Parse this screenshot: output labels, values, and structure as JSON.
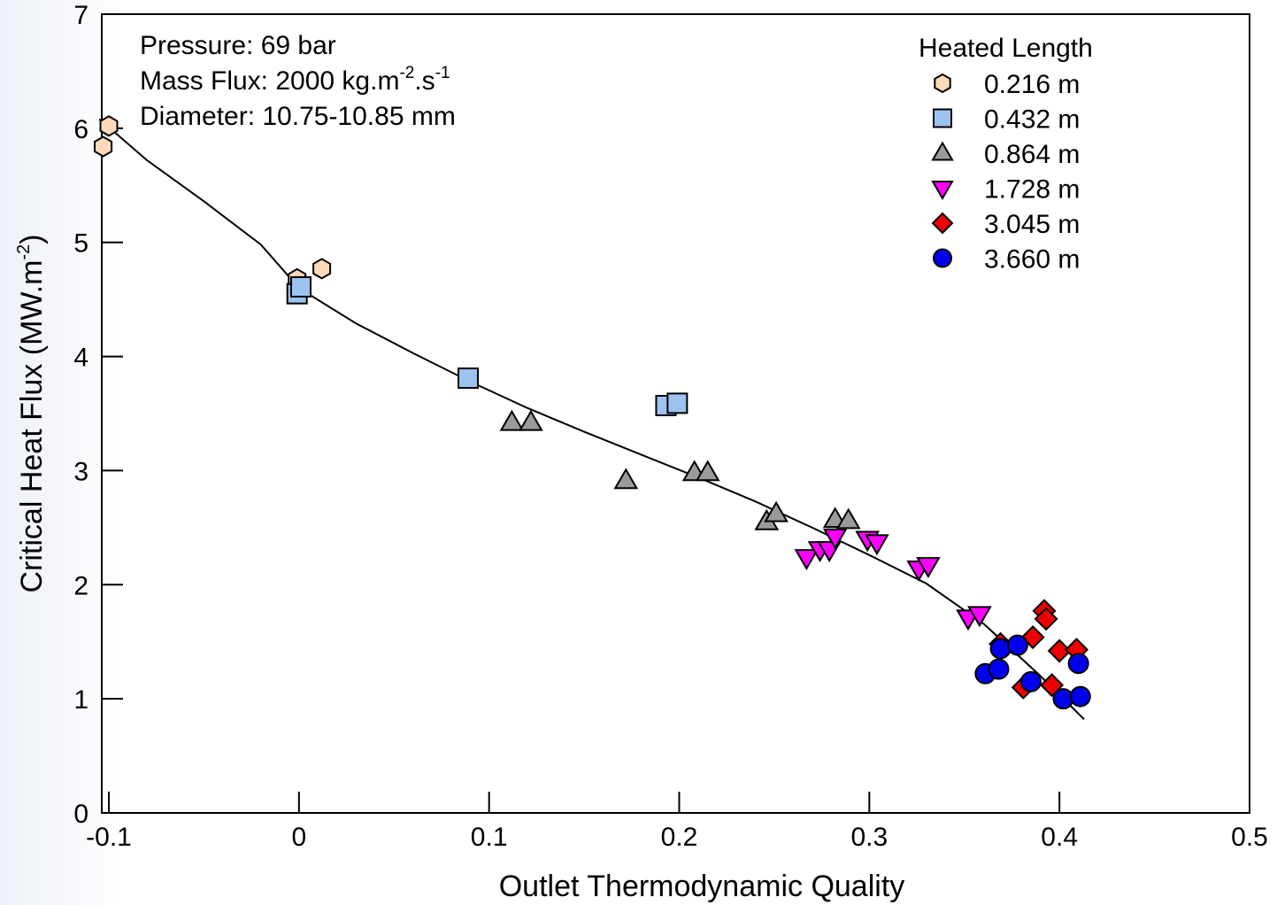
{
  "chart_data": {
    "type": "scatter",
    "xlabel": "Outlet Thermodynamic Quality",
    "ylabel": "Critical Heat Flux (MW.m",
    "ylabel_sup": "-2",
    "ylabel_end": ")",
    "xlim": [
      -0.1,
      0.5
    ],
    "ylim": [
      0,
      7
    ],
    "x_ticks": [
      -0.1,
      0,
      0.1,
      0.2,
      0.3,
      0.4,
      0.5
    ],
    "x_tick_labels": [
      "-0.1",
      "0",
      "0.1",
      "0.2",
      "0.3",
      "0.4",
      "0.5"
    ],
    "y_ticks": [
      0,
      1,
      2,
      3,
      4,
      5,
      6,
      7
    ],
    "y_tick_labels": [
      "0",
      "1",
      "2",
      "3",
      "4",
      "5",
      "6",
      "7"
    ],
    "grid": false,
    "annotations": {
      "pressure": "Pressure: 69 bar",
      "mass_flux_prefix": "Mass Flux: 2000 kg.m",
      "mass_flux_sup1": "-2",
      "mass_flux_mid": ".s",
      "mass_flux_sup2": "-1",
      "diameter": "Diameter: 10.75-10.85 mm"
    },
    "legend": {
      "title": "Heated Length",
      "position": "top-right"
    },
    "series": [
      {
        "name": "0.216 m",
        "marker": "hexagon",
        "color": "#fcd9b8",
        "x": [
          -0.103,
          -0.1,
          -0.001,
          0.012
        ],
        "y": [
          5.84,
          6.02,
          4.68,
          4.77
        ]
      },
      {
        "name": "0.432 m",
        "marker": "square",
        "color": "#9dc3f0",
        "x": [
          -0.001,
          0.001,
          0.089,
          0.193,
          0.199
        ],
        "y": [
          4.55,
          4.61,
          3.81,
          3.57,
          3.59
        ]
      },
      {
        "name": "0.864 m",
        "marker": "triangle-up",
        "color": "#9a9a9a",
        "x": [
          0.112,
          0.122,
          0.172,
          0.208,
          0.215,
          0.246,
          0.251,
          0.282,
          0.289
        ],
        "y": [
          3.42,
          3.42,
          2.91,
          2.98,
          2.98,
          2.55,
          2.62,
          2.57,
          2.56
        ]
      },
      {
        "name": "1.728 m",
        "marker": "triangle-down",
        "color": "#ff00ff",
        "x": [
          0.267,
          0.274,
          0.279,
          0.282,
          0.299,
          0.304,
          0.326,
          0.331,
          0.352,
          0.358
        ],
        "y": [
          2.24,
          2.31,
          2.31,
          2.42,
          2.4,
          2.37,
          2.14,
          2.17,
          1.71,
          1.74
        ]
      },
      {
        "name": "3.045 m",
        "marker": "diamond",
        "color": "#ee0000",
        "x": [
          0.369,
          0.381,
          0.386,
          0.392,
          0.393,
          0.396,
          0.4,
          0.409
        ],
        "y": [
          1.48,
          1.1,
          1.54,
          1.77,
          1.7,
          1.12,
          1.42,
          1.43
        ]
      },
      {
        "name": "3.660 m",
        "marker": "circle",
        "color": "#0000ee",
        "x": [
          0.361,
          0.368,
          0.369,
          0.378,
          0.385,
          0.402,
          0.41,
          0.411
        ],
        "y": [
          1.22,
          1.26,
          1.44,
          1.47,
          1.15,
          1.0,
          1.31,
          1.02
        ]
      }
    ],
    "trend_line": {
      "x": [
        -0.105,
        -0.08,
        -0.05,
        -0.02,
        0.0,
        0.03,
        0.06,
        0.09,
        0.12,
        0.15,
        0.18,
        0.21,
        0.24,
        0.27,
        0.3,
        0.33,
        0.36,
        0.39,
        0.413
      ],
      "y": [
        6.08,
        5.72,
        5.36,
        4.98,
        4.6,
        4.29,
        4.03,
        3.78,
        3.55,
        3.34,
        3.14,
        2.94,
        2.73,
        2.5,
        2.26,
        2.01,
        1.66,
        1.2,
        0.82
      ]
    }
  }
}
